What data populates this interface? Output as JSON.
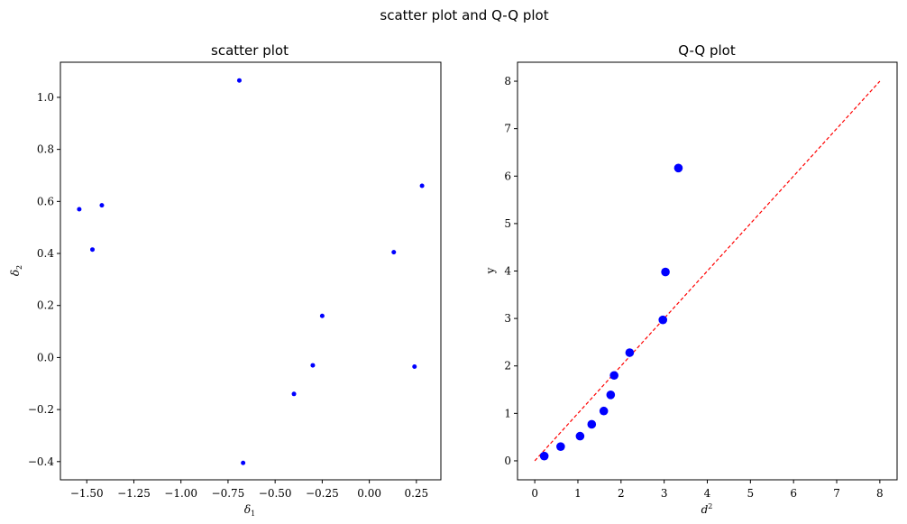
{
  "figure": {
    "suptitle": "scatter plot and Q-Q plot"
  },
  "chart_data": [
    {
      "type": "scatter",
      "title": "scatter plot",
      "xlabel": "δ",
      "xlabel_sub": "1",
      "ylabel": "δ",
      "ylabel_sub": "2",
      "xlim": [
        -1.64,
        0.38
      ],
      "ylim": [
        -0.47,
        1.135
      ],
      "xticks": [
        -1.5,
        -1.25,
        -1.0,
        -0.75,
        -0.5,
        -0.25,
        0.0,
        0.25
      ],
      "xtick_labels": [
        "−1.50",
        "−1.25",
        "−1.00",
        "−0.75",
        "−0.50",
        "−0.25",
        "0.00",
        "0.25"
      ],
      "yticks": [
        -0.4,
        -0.2,
        0.0,
        0.2,
        0.4,
        0.6,
        0.8,
        1.0
      ],
      "ytick_labels": [
        "−0.4",
        "−0.2",
        "0.0",
        "0.2",
        "0.4",
        "0.6",
        "0.8",
        "1.0"
      ],
      "grid": false,
      "color": "#0000ff",
      "points": [
        {
          "x": -1.54,
          "y": 0.57
        },
        {
          "x": -1.42,
          "y": 0.585
        },
        {
          "x": -1.47,
          "y": 0.415
        },
        {
          "x": -0.69,
          "y": 1.065
        },
        {
          "x": -0.67,
          "y": -0.405
        },
        {
          "x": -0.4,
          "y": -0.14
        },
        {
          "x": -0.3,
          "y": -0.03
        },
        {
          "x": -0.25,
          "y": 0.16
        },
        {
          "x": 0.13,
          "y": 0.405
        },
        {
          "x": 0.24,
          "y": -0.035
        },
        {
          "x": 0.28,
          "y": 0.66
        }
      ]
    },
    {
      "type": "scatter",
      "title": "Q-Q plot",
      "xlabel": "d",
      "xlabel_sup": "2",
      "ylabel": "y",
      "xlim": [
        -0.4,
        8.4
      ],
      "ylim": [
        -0.4,
        8.4
      ],
      "xticks": [
        0,
        1,
        2,
        3,
        4,
        5,
        6,
        7,
        8
      ],
      "xtick_labels": [
        "0",
        "1",
        "2",
        "3",
        "4",
        "5",
        "6",
        "7",
        "8"
      ],
      "yticks": [
        0,
        1,
        2,
        3,
        4,
        5,
        6,
        7,
        8
      ],
      "ytick_labels": [
        "0",
        "1",
        "2",
        "3",
        "4",
        "5",
        "6",
        "7",
        "8"
      ],
      "grid": false,
      "color": "#0000ff",
      "points": [
        {
          "x": 0.22,
          "y": 0.1
        },
        {
          "x": 0.6,
          "y": 0.3
        },
        {
          "x": 1.05,
          "y": 0.52
        },
        {
          "x": 1.32,
          "y": 0.77
        },
        {
          "x": 1.6,
          "y": 1.05
        },
        {
          "x": 1.76,
          "y": 1.39
        },
        {
          "x": 1.84,
          "y": 1.8
        },
        {
          "x": 2.2,
          "y": 2.28
        },
        {
          "x": 2.97,
          "y": 2.97
        },
        {
          "x": 3.03,
          "y": 3.98
        },
        {
          "x": 3.33,
          "y": 6.17
        }
      ],
      "reference_line": {
        "x": [
          0,
          8
        ],
        "y": [
          0,
          8
        ],
        "color": "#ff0000",
        "style": "dashed"
      }
    }
  ]
}
